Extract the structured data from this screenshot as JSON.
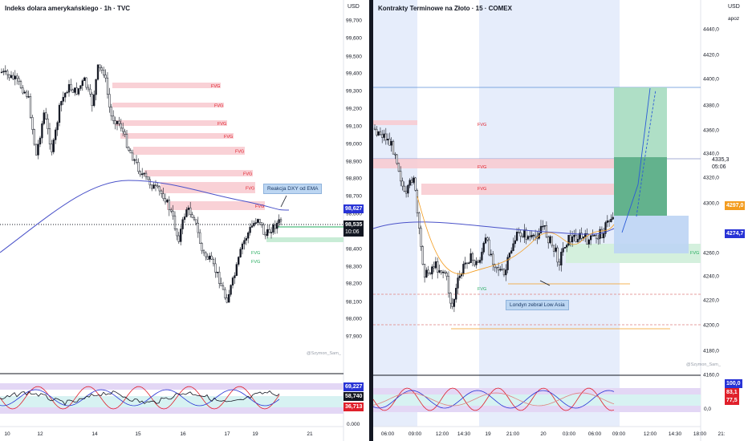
{
  "left": {
    "title": "Indeks dolara amerykańskiego · 1h · TVC",
    "currency": "USD",
    "y_ticks": [
      "99,700",
      "99,500",
      "99,300",
      "99,100",
      "98,900",
      "98,700",
      "98,500",
      "98,400",
      "98,200",
      "98,100",
      "97,900",
      "97,800"
    ],
    "extra_tick": "98,000",
    "x_ticks": [
      "10",
      "12",
      "14",
      "15",
      "16",
      "17",
      "19",
      "21"
    ],
    "osc_ticks": [
      "0.000"
    ],
    "price_tags": {
      "blue": "98,627",
      "last": "98,535",
      "timer": "10:06"
    },
    "osc_tags": {
      "blue": "69,227",
      "black": "58,740",
      "red": "36,713"
    },
    "fvg_label": "FVG",
    "annotation": "Reakcja DXY od EMA",
    "watermark": "@Szymon_Sam_",
    "colors": {
      "fvg_red": "#f8c9cf",
      "fvg_green": "#c8ecd6",
      "ema": "#4a52c9"
    }
  },
  "right": {
    "title": "Kontrakty Terminowe na Złoto · 15 · COMEX",
    "currency": "USD",
    "sub_label": "apoz",
    "y_ticks": [
      "4440,0",
      "4420,0",
      "4400,0",
      "4380,0",
      "4360,0",
      "4340,0",
      "4320,0",
      "4300,0",
      "4260,0",
      "4240,0",
      "4220,0",
      "4200,0",
      "4180,0",
      "4160,0"
    ],
    "x_ticks": [
      "06:00",
      "09:00",
      "12:00",
      "14:30",
      "19",
      "21:00",
      "20",
      "03:00",
      "06:00",
      "09:00",
      "12:00",
      "14:30",
      "18:00",
      "21:"
    ],
    "price_tags": {
      "p1": "4335,3",
      "p1_time": "05:06",
      "orange": "4297,0",
      "blue": "4274,7"
    },
    "osc_ticks": [
      "0,0"
    ],
    "osc_tags": {
      "blue": "100,0",
      "red1": "83,1",
      "red2": "77,5"
    },
    "fvg_label": "FVG",
    "annotation": "Londyn zebrał Low Asia",
    "watermark": "@Szymon_Sam_",
    "colors": {
      "session": "#e6edfb",
      "fvg_red": "#f8c9cf",
      "tp_green": "#4aa37a",
      "sl_blue": "#bcd4f4"
    }
  },
  "chart_data": [
    {
      "type": "line",
      "title": "Indeks dolara amerykańskiego · 1h · TVC",
      "x": [
        "10",
        "12",
        "14",
        "15",
        "16",
        "17",
        "19",
        "21"
      ],
      "series": [
        {
          "values": [
            99.52,
            99.28,
            99.1,
            98.9,
            98.62,
            98.3,
            98.12,
            98.55
          ]
        }
      ],
      "ylim": [
        97.8,
        99.8
      ],
      "grid": false
    },
    {
      "type": "line",
      "title": "Kontrakty Terminowe na Złoto · 15 · COMEX",
      "x": [
        "06:00",
        "09:00",
        "12:00",
        "14:30",
        "19",
        "21:00",
        "20",
        "03:00",
        "06:00",
        "09:00"
      ],
      "series": [
        {
          "values": [
            4360,
            4320,
            4215,
            4225,
            4250,
            4265,
            4270,
            4250,
            4270,
            4290
          ]
        }
      ],
      "ylim": [
        4160,
        4450
      ],
      "grid": false
    }
  ]
}
